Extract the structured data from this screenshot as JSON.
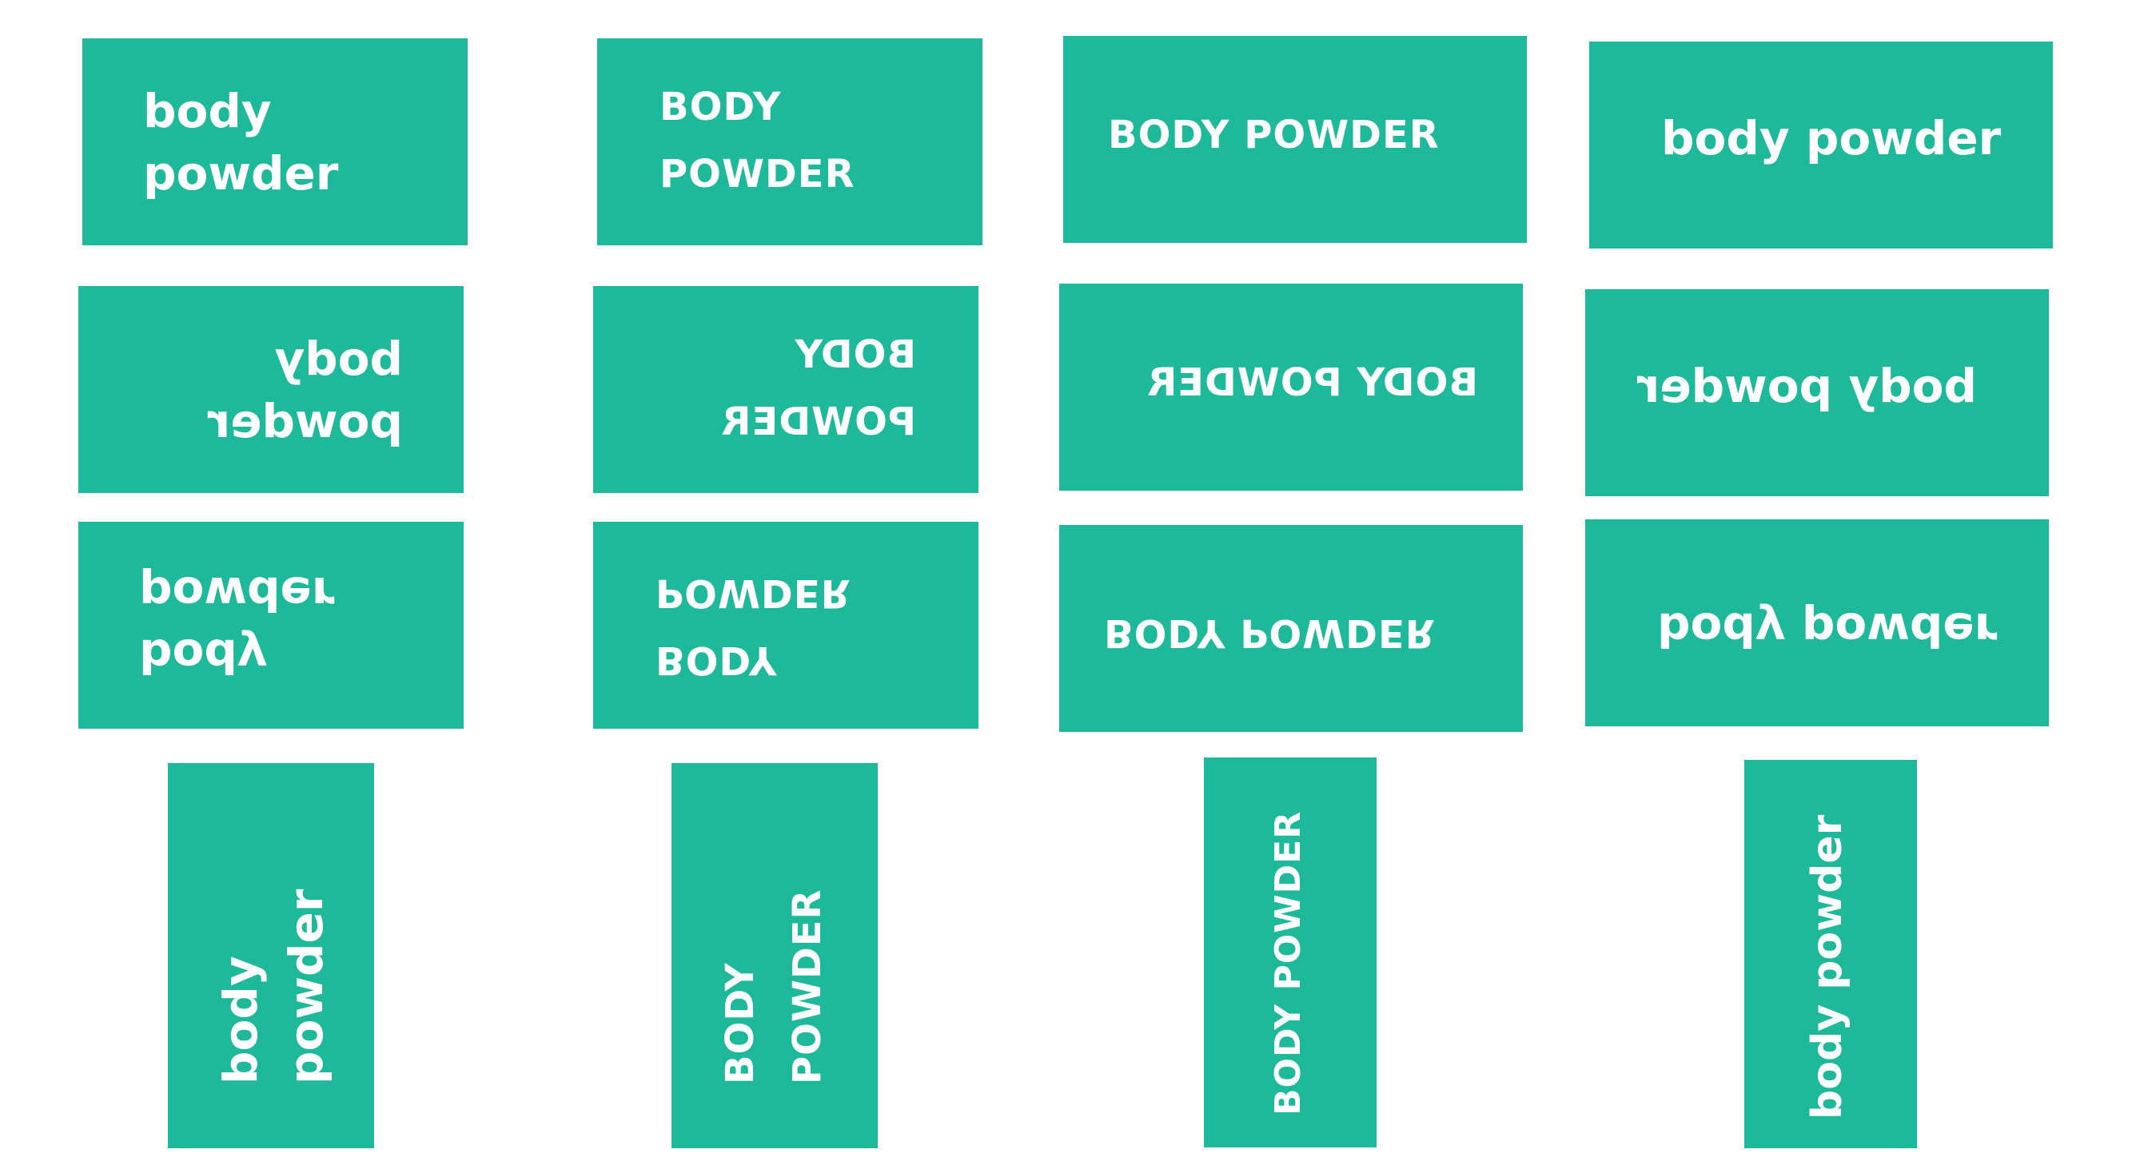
{
  "background_color": "#ffffff",
  "card_color": "#1eb99a",
  "text_color": "#ffffff",
  "row1": {
    "c1": {
      "line1": "body",
      "line2": "powder"
    },
    "c2": {
      "line1": "BODY",
      "line2": "POWDER"
    },
    "c3": {
      "text": "BODY POWDER"
    },
    "c4": {
      "text": "body powder"
    }
  },
  "row2_mirrored": {
    "c5": {
      "line1": "body",
      "line2": "powder"
    },
    "c6": {
      "line1": "BODY",
      "line2": "POWDER"
    },
    "c7": {
      "text": "BODY POWDER"
    },
    "c8": {
      "text": "body powder"
    }
  },
  "row3_flipped": {
    "c9": {
      "line1": "body",
      "line2": "powder"
    },
    "c10": {
      "line1": "BODY",
      "line2": "POWDER"
    },
    "c11": {
      "text": "BODY POWDER"
    },
    "c12": {
      "text": "body powder"
    }
  },
  "row4_vertical": {
    "c13": {
      "line1": "body",
      "line2": "powder"
    },
    "c14": {
      "line1": "BODY",
      "line2": "POWDER"
    },
    "c15": {
      "text": "BODY POWDER"
    },
    "c16": {
      "text": "body powder"
    }
  }
}
